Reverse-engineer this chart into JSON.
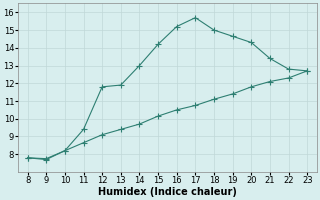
{
  "xlabel": "Humidex (Indice chaleur)",
  "background_color": "#d8eeee",
  "line_color": "#2e7f72",
  "curve1_x": [
    8,
    9,
    10,
    11,
    12,
    13,
    14,
    15,
    16,
    17,
    18,
    19,
    20,
    21,
    22,
    23
  ],
  "curve1_y": [
    7.8,
    7.7,
    8.2,
    9.4,
    11.8,
    11.9,
    13.0,
    14.2,
    15.2,
    15.7,
    15.0,
    14.65,
    14.3,
    13.4,
    12.8,
    12.7
  ],
  "curve2_x": [
    8,
    9,
    10,
    11,
    12,
    13,
    14,
    15,
    16,
    17,
    18,
    19,
    20,
    21,
    22,
    23
  ],
  "curve2_y": [
    7.8,
    7.75,
    8.2,
    8.65,
    9.1,
    9.4,
    9.7,
    10.15,
    10.5,
    10.75,
    11.1,
    11.4,
    11.8,
    12.1,
    12.3,
    12.7
  ],
  "xlim": [
    7.5,
    23.5
  ],
  "ylim": [
    7.0,
    16.5
  ],
  "xticks": [
    8,
    9,
    10,
    11,
    12,
    13,
    14,
    15,
    16,
    17,
    18,
    19,
    20,
    21,
    22,
    23
  ],
  "yticks": [
    8,
    9,
    10,
    11,
    12,
    13,
    14,
    15,
    16
  ],
  "grid_color": "#c0d8d8",
  "tick_fontsize": 6,
  "label_fontsize": 7,
  "marker": "+",
  "marker_size": 4,
  "line_width": 0.8
}
